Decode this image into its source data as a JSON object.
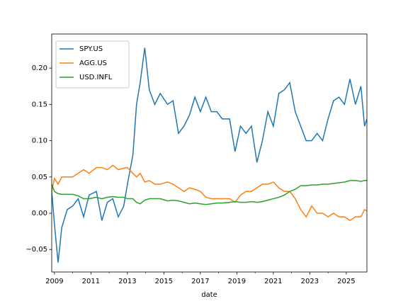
{
  "chart_data": {
    "type": "line",
    "x_label": "date",
    "x": [
      2008.85,
      2009.0,
      2009.2,
      2009.4,
      2009.7,
      2010.0,
      2010.3,
      2010.6,
      2010.9,
      2011.3,
      2011.6,
      2011.9,
      2012.2,
      2012.5,
      2012.8,
      2013.0,
      2013.3,
      2013.5,
      2013.7,
      2013.95,
      2014.2,
      2014.5,
      2014.8,
      2015.2,
      2015.5,
      2015.8,
      2016.1,
      2016.4,
      2016.7,
      2017.0,
      2017.3,
      2017.6,
      2017.9,
      2018.2,
      2018.6,
      2018.9,
      2019.2,
      2019.5,
      2019.8,
      2020.1,
      2020.4,
      2020.7,
      2021.0,
      2021.3,
      2021.6,
      2021.9,
      2022.2,
      2022.5,
      2022.8,
      2023.1,
      2023.4,
      2023.7,
      2024.0,
      2024.3,
      2024.6,
      2024.9,
      2025.2,
      2025.5,
      2025.8,
      2026.0,
      2026.13
    ],
    "series": [
      {
        "name": "SPY.US",
        "color": "#1f77b4",
        "values": [
          0.03,
          -0.015,
          -0.068,
          -0.02,
          0.005,
          0.01,
          0.02,
          -0.005,
          0.025,
          0.03,
          -0.01,
          0.015,
          0.02,
          -0.005,
          0.01,
          0.04,
          0.08,
          0.15,
          0.18,
          0.228,
          0.17,
          0.15,
          0.165,
          0.15,
          0.155,
          0.11,
          0.12,
          0.135,
          0.16,
          0.14,
          0.16,
          0.14,
          0.14,
          0.13,
          0.13,
          0.085,
          0.12,
          0.11,
          0.12,
          0.07,
          0.1,
          0.14,
          0.12,
          0.165,
          0.17,
          0.18,
          0.14,
          0.12,
          0.1,
          0.1,
          0.11,
          0.1,
          0.13,
          0.155,
          0.16,
          0.15,
          0.185,
          0.15,
          0.175,
          0.12,
          0.13
        ]
      },
      {
        "name": "AGG.US",
        "color": "#ff7f0e",
        "values": [
          0.03,
          0.048,
          0.04,
          0.05,
          0.05,
          0.05,
          0.055,
          0.06,
          0.055,
          0.063,
          0.063,
          0.06,
          0.066,
          0.06,
          0.062,
          0.063,
          0.055,
          0.05,
          0.055,
          0.043,
          0.045,
          0.04,
          0.04,
          0.043,
          0.04,
          0.035,
          0.03,
          0.035,
          0.033,
          0.03,
          0.022,
          0.02,
          0.02,
          0.02,
          0.02,
          0.015,
          0.025,
          0.03,
          0.03,
          0.035,
          0.04,
          0.04,
          0.043,
          0.035,
          0.03,
          0.03,
          0.02,
          0.005,
          -0.005,
          0.01,
          0.0,
          0.0,
          -0.005,
          0.0,
          -0.005,
          -0.005,
          -0.01,
          -0.005,
          -0.005,
          0.005,
          0.003
        ]
      },
      {
        "name": "USD.INFL",
        "color": "#2ca02c",
        "values": [
          0.04,
          0.03,
          0.027,
          0.026,
          0.026,
          0.026,
          0.024,
          0.02,
          0.02,
          0.022,
          0.02,
          0.022,
          0.023,
          0.022,
          0.022,
          0.02,
          0.02,
          0.015,
          0.013,
          0.018,
          0.02,
          0.02,
          0.02,
          0.017,
          0.018,
          0.017,
          0.015,
          0.013,
          0.014,
          0.013,
          0.012,
          0.013,
          0.014,
          0.014,
          0.015,
          0.016,
          0.015,
          0.015,
          0.016,
          0.015,
          0.016,
          0.018,
          0.02,
          0.022,
          0.025,
          0.03,
          0.033,
          0.038,
          0.038,
          0.039,
          0.039,
          0.04,
          0.04,
          0.041,
          0.042,
          0.043,
          0.045,
          0.045,
          0.044,
          0.045,
          0.045
        ]
      }
    ],
    "xlim": [
      2008.85,
      2026.13
    ],
    "xticks": [
      2009,
      2011,
      2013,
      2015,
      2017,
      2019,
      2021,
      2023,
      2025
    ],
    "ylim": [
      -0.081,
      0.247
    ],
    "yticks": [
      {
        "value": -0.05,
        "label": "−0.05"
      },
      {
        "value": 0,
        "label": "0.00"
      },
      {
        "value": 0.05,
        "label": "0.05"
      },
      {
        "value": 0.1,
        "label": "0.10"
      },
      {
        "value": 0.15,
        "label": "0.15"
      },
      {
        "value": 0.2,
        "label": "0.20"
      }
    ],
    "legend": "upper left"
  }
}
